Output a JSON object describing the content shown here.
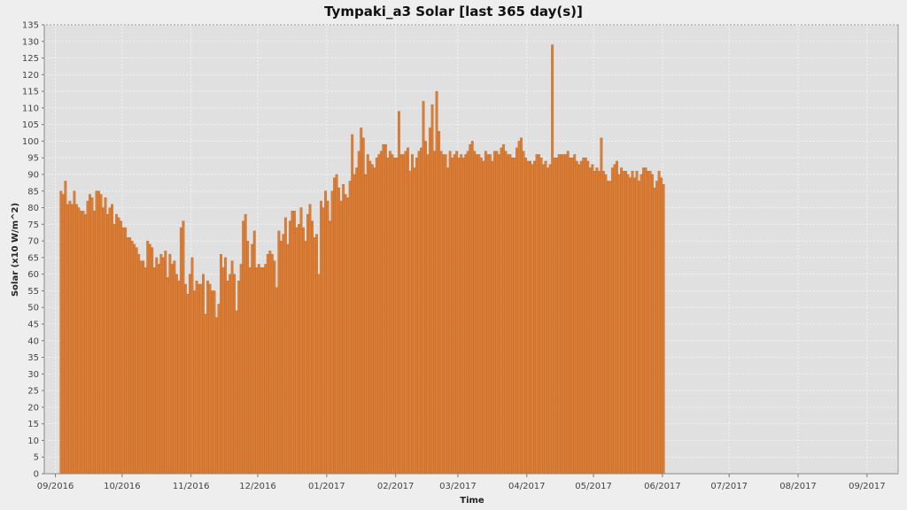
{
  "chart_data": {
    "type": "bar",
    "title": "Tympaki_a3 Solar [last 365 day(s)]",
    "xlabel": "Time",
    "ylabel": "Solar (x10 W/m^2)",
    "ylim": [
      0,
      135
    ],
    "y_tick_step": 5,
    "x_tick_labels": [
      "09/2016",
      "10/2016",
      "11/2016",
      "12/2016",
      "01/2017",
      "02/2017",
      "03/2017",
      "04/2017",
      "05/2017",
      "06/2017",
      "07/2017",
      "08/2017",
      "09/2017"
    ],
    "x_range": [
      "2016-08-27",
      "2017-09-15"
    ],
    "grid": true,
    "legend": "none",
    "series_color": "#d9772b",
    "plot_background": "#e0e0e0",
    "series": [
      {
        "name": "",
        "start_date": "2016-09-03",
        "values": [
          85,
          84,
          88,
          81,
          82,
          81,
          85,
          81,
          80,
          79,
          79,
          78,
          82,
          84,
          83,
          79,
          85,
          85,
          84,
          80,
          83,
          78,
          80,
          81,
          75,
          78,
          77,
          76,
          74,
          74,
          71,
          71,
          70,
          69,
          68,
          66,
          64,
          64,
          62,
          70,
          69,
          68,
          62,
          65,
          63,
          66,
          65,
          67,
          59,
          66,
          63,
          64,
          60,
          58,
          74,
          76,
          57,
          54,
          60,
          65,
          55,
          58,
          57,
          57,
          60,
          48,
          58,
          57,
          55,
          55,
          47,
          51,
          66,
          62,
          65,
          58,
          60,
          64,
          60,
          49,
          58,
          63,
          76,
          78,
          70,
          62,
          69,
          73,
          62,
          63,
          62,
          62,
          63,
          66,
          67,
          66,
          64,
          56,
          73,
          70,
          72,
          77,
          69,
          76,
          79,
          79,
          74,
          75,
          80,
          74,
          70,
          78,
          81,
          76,
          71,
          72,
          60,
          82,
          80,
          85,
          82,
          76,
          85,
          89,
          90,
          86,
          82,
          87,
          84,
          83,
          88,
          102,
          90,
          92,
          97,
          104,
          101,
          90,
          96,
          94,
          93,
          92,
          95,
          96,
          97,
          99,
          99,
          95,
          97,
          96,
          95,
          95,
          109,
          96,
          96,
          97,
          98,
          91,
          96,
          92,
          95,
          97,
          98,
          112,
          100,
          96,
          104,
          111,
          97,
          115,
          103,
          97,
          96,
          96,
          92,
          97,
          95,
          96,
          97,
          95,
          96,
          95,
          96,
          97,
          99,
          100,
          97,
          96,
          96,
          95,
          94,
          97,
          96,
          96,
          94,
          97,
          97,
          96,
          98,
          99,
          97,
          96,
          96,
          95,
          95,
          98,
          100,
          101,
          97,
          95,
          94,
          94,
          93,
          94,
          96,
          96,
          95,
          93,
          94,
          92,
          93,
          129,
          95,
          95,
          96,
          96,
          96,
          96,
          97,
          95,
          95,
          96,
          94,
          93,
          94,
          95,
          95,
          94,
          92,
          93,
          91,
          92,
          91,
          101,
          91,
          90,
          88,
          88,
          92,
          93,
          94,
          90,
          92,
          91,
          91,
          90,
          89,
          91,
          89,
          91,
          88,
          90,
          92,
          92,
          91,
          91,
          90,
          86,
          88,
          91,
          89,
          87
        ]
      }
    ]
  }
}
